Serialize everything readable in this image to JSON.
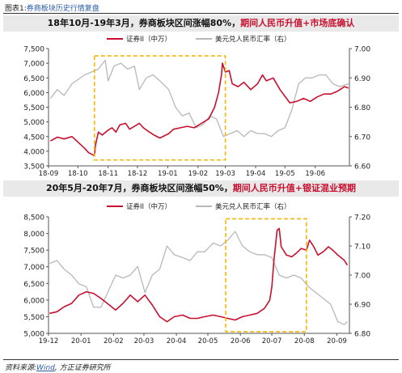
{
  "caption": {
    "prefix": "图表1:",
    "title": "券商板块历史行情复盘"
  },
  "source": {
    "label": "资料来源:",
    "wind": "Wind",
    "rest": ", 方正证券研究所"
  },
  "chart_data": [
    {
      "type": "line",
      "title_main": "18年10月-19年3月，券商板块区间涨幅80%，",
      "title_em": "期间人民币升值+市场底确认",
      "series": [
        {
          "name": "证券II（中万）",
          "axis": "left",
          "color": "#c8102e",
          "points": [
            [
              "2018-09-03",
              4350
            ],
            [
              "2018-09-10",
              4480
            ],
            [
              "2018-09-17",
              4420
            ],
            [
              "2018-09-25",
              4500
            ],
            [
              "2018-10-08",
              4100
            ],
            [
              "2018-10-12",
              3950
            ],
            [
              "2018-10-18",
              3850
            ],
            [
              "2018-10-19",
              4200
            ],
            [
              "2018-10-22",
              4650
            ],
            [
              "2018-10-26",
              4550
            ],
            [
              "2018-11-01",
              4720
            ],
            [
              "2018-11-05",
              4800
            ],
            [
              "2018-11-09",
              4650
            ],
            [
              "2018-11-13",
              4900
            ],
            [
              "2018-11-19",
              4950
            ],
            [
              "2018-11-23",
              4750
            ],
            [
              "2018-11-28",
              4850
            ],
            [
              "2018-12-03",
              4950
            ],
            [
              "2018-12-07",
              4800
            ],
            [
              "2018-12-12",
              4680
            ],
            [
              "2018-12-18",
              4550
            ],
            [
              "2018-12-24",
              4450
            ],
            [
              "2019-01-02",
              4600
            ],
            [
              "2019-01-07",
              4750
            ],
            [
              "2019-01-14",
              4800
            ],
            [
              "2019-01-21",
              4850
            ],
            [
              "2019-01-28",
              4800
            ],
            [
              "2019-02-01",
              4880
            ],
            [
              "2019-02-12",
              5100
            ],
            [
              "2019-02-18",
              5500
            ],
            [
              "2019-02-22",
              6000
            ],
            [
              "2019-02-25",
              6600
            ],
            [
              "2019-02-26",
              7000
            ],
            [
              "2019-03-01",
              6700
            ],
            [
              "2019-03-05",
              6750
            ],
            [
              "2019-03-08",
              6300
            ],
            [
              "2019-03-14",
              6200
            ],
            [
              "2019-03-20",
              6350
            ],
            [
              "2019-03-27",
              6100
            ],
            [
              "2019-04-03",
              6300
            ],
            [
              "2019-04-08",
              6600
            ],
            [
              "2019-04-12",
              6400
            ],
            [
              "2019-04-19",
              6500
            ],
            [
              "2019-04-26",
              6100
            ],
            [
              "2019-05-06",
              5650
            ],
            [
              "2019-05-13",
              5700
            ],
            [
              "2019-05-20",
              5800
            ],
            [
              "2019-05-27",
              5700
            ],
            [
              "2019-06-03",
              5850
            ],
            [
              "2019-06-10",
              5950
            ],
            [
              "2019-06-17",
              5950
            ],
            [
              "2019-06-24",
              6050
            ],
            [
              "2019-07-01",
              6200
            ],
            [
              "2019-07-05",
              6150
            ]
          ]
        },
        {
          "name": "美元兑人民币汇率（右）",
          "axis": "right",
          "color": "#b8b8b8",
          "points": [
            [
              "2018-09-03",
              6.83
            ],
            [
              "2018-09-10",
              6.86
            ],
            [
              "2018-09-17",
              6.84
            ],
            [
              "2018-09-25",
              6.88
            ],
            [
              "2018-10-08",
              6.91
            ],
            [
              "2018-10-15",
              6.92
            ],
            [
              "2018-10-22",
              6.93
            ],
            [
              "2018-10-29",
              6.96
            ],
            [
              "2018-11-01",
              6.89
            ],
            [
              "2018-11-07",
              6.94
            ],
            [
              "2018-11-14",
              6.95
            ],
            [
              "2018-11-21",
              6.93
            ],
            [
              "2018-11-28",
              6.94
            ],
            [
              "2018-12-03",
              6.86
            ],
            [
              "2018-12-10",
              6.9
            ],
            [
              "2018-12-17",
              6.91
            ],
            [
              "2018-12-24",
              6.89
            ],
            [
              "2019-01-02",
              6.86
            ],
            [
              "2019-01-09",
              6.8
            ],
            [
              "2019-01-16",
              6.77
            ],
            [
              "2019-01-23",
              6.78
            ],
            [
              "2019-01-30",
              6.73
            ],
            [
              "2019-02-06",
              6.74
            ],
            [
              "2019-02-13",
              6.77
            ],
            [
              "2019-02-20",
              6.76
            ],
            [
              "2019-02-27",
              6.7
            ],
            [
              "2019-03-06",
              6.71
            ],
            [
              "2019-03-13",
              6.72
            ],
            [
              "2019-03-20",
              6.7
            ],
            [
              "2019-03-27",
              6.72
            ],
            [
              "2019-04-03",
              6.71
            ],
            [
              "2019-04-10",
              6.71
            ],
            [
              "2019-04-17",
              6.7
            ],
            [
              "2019-04-24",
              6.72
            ],
            [
              "2019-05-01",
              6.73
            ],
            [
              "2019-05-08",
              6.79
            ],
            [
              "2019-05-15",
              6.88
            ],
            [
              "2019-05-22",
              6.9
            ],
            [
              "2019-05-29",
              6.9
            ],
            [
              "2019-06-05",
              6.91
            ],
            [
              "2019-06-12",
              6.91
            ],
            [
              "2019-06-19",
              6.88
            ],
            [
              "2019-06-26",
              6.87
            ],
            [
              "2019-07-05",
              6.88
            ]
          ]
        }
      ],
      "xlim": [
        "2018-09-01",
        "2019-07-06"
      ],
      "ylim_left": [
        3500,
        7500
      ],
      "ylim_right": [
        6.6,
        7.0
      ],
      "xticks": [
        {
          "date": "2018-09-01",
          "label": "18-09"
        },
        {
          "date": "2018-10-01",
          "label": "18-10"
        },
        {
          "date": "2018-11-01",
          "label": "18-11"
        },
        {
          "date": "2018-12-01",
          "label": "18-12"
        },
        {
          "date": "2019-01-01",
          "label": "19-01"
        },
        {
          "date": "2019-02-01",
          "label": "19-02"
        },
        {
          "date": "2019-03-01",
          "label": "19-03"
        },
        {
          "date": "2019-04-01",
          "label": "19-04"
        },
        {
          "date": "2019-05-01",
          "label": "19-05"
        },
        {
          "date": "2019-06-01",
          "label": "19-06"
        }
      ],
      "yticks_left": [
        "3,500",
        "4,000",
        "4,500",
        "5,000",
        "5,500",
        "6,000",
        "6,500",
        "7,000",
        "7,500"
      ],
      "yticks_right": [
        "6.60",
        "6.70",
        "6.80",
        "6.90",
        "7.00"
      ],
      "highlight": {
        "x_start": "2018-10-18",
        "x_end": "2019-03-01",
        "y_left_min": 3700,
        "y_left_max": 7250
      },
      "legend": "top"
    },
    {
      "type": "line",
      "title_main": "20年5月-20年7月，券商板块区间涨幅50%，",
      "title_em": "期间人民币升值+银证混业预期",
      "series": [
        {
          "name": "证券II（中万）",
          "axis": "left",
          "color": "#c8102e",
          "points": [
            [
              "2019-12-02",
              5600
            ],
            [
              "2019-12-09",
              5650
            ],
            [
              "2019-12-16",
              5800
            ],
            [
              "2019-12-23",
              5900
            ],
            [
              "2019-12-30",
              6150
            ],
            [
              "2020-01-06",
              6250
            ],
            [
              "2020-01-13",
              6200
            ],
            [
              "2020-01-20",
              6050
            ],
            [
              "2020-02-03",
              5700
            ],
            [
              "2020-02-10",
              5900
            ],
            [
              "2020-02-17",
              6150
            ],
            [
              "2020-02-24",
              5950
            ],
            [
              "2020-03-02",
              6150
            ],
            [
              "2020-03-09",
              5850
            ],
            [
              "2020-03-16",
              5500
            ],
            [
              "2020-03-23",
              5350
            ],
            [
              "2020-03-30",
              5500
            ],
            [
              "2020-04-07",
              5550
            ],
            [
              "2020-04-14",
              5450
            ],
            [
              "2020-04-21",
              5450
            ],
            [
              "2020-04-28",
              5500
            ],
            [
              "2020-05-06",
              5550
            ],
            [
              "2020-05-13",
              5500
            ],
            [
              "2020-05-20",
              5450
            ],
            [
              "2020-05-27",
              5400
            ],
            [
              "2020-06-03",
              5500
            ],
            [
              "2020-06-10",
              5550
            ],
            [
              "2020-06-17",
              5600
            ],
            [
              "2020-06-24",
              5750
            ],
            [
              "2020-06-29",
              6000
            ],
            [
              "2020-07-01",
              6400
            ],
            [
              "2020-07-03",
              7200
            ],
            [
              "2020-07-06",
              8100
            ],
            [
              "2020-07-08",
              8150
            ],
            [
              "2020-07-10",
              7600
            ],
            [
              "2020-07-15",
              7350
            ],
            [
              "2020-07-20",
              7300
            ],
            [
              "2020-07-24",
              7400
            ],
            [
              "2020-07-29",
              7550
            ],
            [
              "2020-08-03",
              7500
            ],
            [
              "2020-08-06",
              7800
            ],
            [
              "2020-08-10",
              7600
            ],
            [
              "2020-08-14",
              7350
            ],
            [
              "2020-08-19",
              7450
            ],
            [
              "2020-08-24",
              7600
            ],
            [
              "2020-08-28",
              7500
            ],
            [
              "2020-09-02",
              7350
            ],
            [
              "2020-09-08",
              7200
            ],
            [
              "2020-09-11",
              7050
            ]
          ]
        },
        {
          "name": "美元兑人民币汇率（右）",
          "axis": "right",
          "color": "#b8b8b8",
          "points": [
            [
              "2019-12-02",
              7.04
            ],
            [
              "2019-12-09",
              7.05
            ],
            [
              "2019-12-16",
              7.02
            ],
            [
              "2019-12-23",
              7.0
            ],
            [
              "2019-12-30",
              6.97
            ],
            [
              "2020-01-06",
              6.96
            ],
            [
              "2020-01-13",
              6.89
            ],
            [
              "2020-01-20",
              6.89
            ],
            [
              "2020-02-03",
              7.0
            ],
            [
              "2020-02-10",
              6.99
            ],
            [
              "2020-02-17",
              7.0
            ],
            [
              "2020-02-24",
              7.03
            ],
            [
              "2020-03-02",
              6.94
            ],
            [
              "2020-03-09",
              7.0
            ],
            [
              "2020-03-16",
              7.02
            ],
            [
              "2020-03-23",
              7.1
            ],
            [
              "2020-03-30",
              7.07
            ],
            [
              "2020-04-07",
              7.06
            ],
            [
              "2020-04-14",
              7.05
            ],
            [
              "2020-04-21",
              7.08
            ],
            [
              "2020-04-28",
              7.08
            ],
            [
              "2020-05-06",
              7.11
            ],
            [
              "2020-05-13",
              7.1
            ],
            [
              "2020-05-20",
              7.12
            ],
            [
              "2020-05-27",
              7.15
            ],
            [
              "2020-06-03",
              7.1
            ],
            [
              "2020-06-10",
              7.08
            ],
            [
              "2020-06-17",
              7.07
            ],
            [
              "2020-06-24",
              7.07
            ],
            [
              "2020-07-01",
              7.06
            ],
            [
              "2020-07-08",
              7.0
            ],
            [
              "2020-07-15",
              6.99
            ],
            [
              "2020-07-22",
              7.0
            ],
            [
              "2020-07-29",
              6.99
            ],
            [
              "2020-08-05",
              6.96
            ],
            [
              "2020-08-12",
              6.94
            ],
            [
              "2020-08-19",
              6.92
            ],
            [
              "2020-08-26",
              6.9
            ],
            [
              "2020-09-02",
              6.84
            ],
            [
              "2020-09-08",
              6.83
            ],
            [
              "2020-09-11",
              6.84
            ]
          ]
        }
      ],
      "xlim": [
        "2019-12-01",
        "2020-09-13"
      ],
      "ylim_left": [
        5000,
        8500
      ],
      "ylim_right": [
        6.8,
        7.2
      ],
      "xticks": [
        {
          "date": "2019-12-01",
          "label": "19-12"
        },
        {
          "date": "2020-01-01",
          "label": "20-01"
        },
        {
          "date": "2020-02-01",
          "label": "20-02"
        },
        {
          "date": "2020-03-01",
          "label": "20-03"
        },
        {
          "date": "2020-04-01",
          "label": "20-04"
        },
        {
          "date": "2020-05-01",
          "label": "20-05"
        },
        {
          "date": "2020-06-01",
          "label": "20-06"
        },
        {
          "date": "2020-07-01",
          "label": "20-07"
        },
        {
          "date": "2020-08-01",
          "label": "20-08"
        },
        {
          "date": "2020-09-01",
          "label": "20-09"
        }
      ],
      "yticks_left": [
        "5,000",
        "5,500",
        "6,000",
        "6,500",
        "7,000",
        "7,500",
        "8,000",
        "8,500"
      ],
      "yticks_right": [
        "6.80",
        "6.90",
        "7.00",
        "7.10",
        "7.20"
      ],
      "highlight": {
        "x_start": "2020-05-18",
        "x_end": "2020-08-03",
        "y_left_min": 5050,
        "y_left_max": 8440
      },
      "legend": "top"
    }
  ]
}
